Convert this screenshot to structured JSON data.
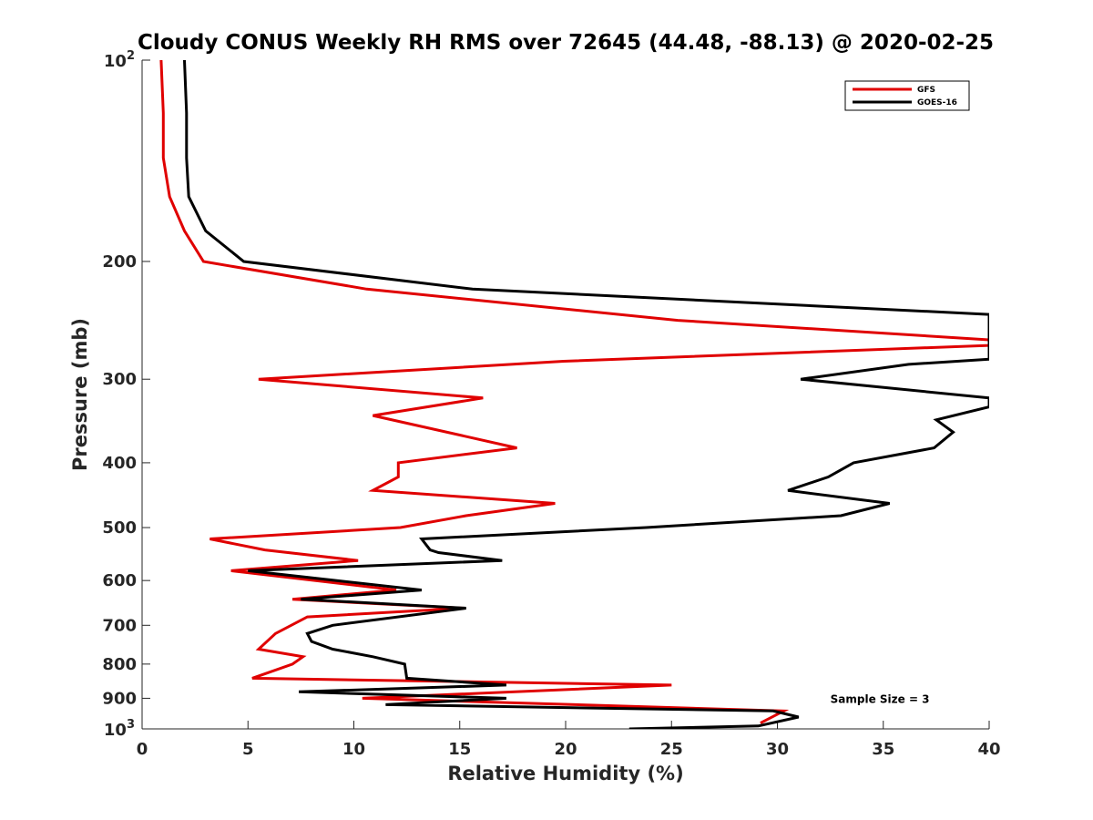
{
  "chart_data": {
    "type": "line",
    "title": "Cloudy CONUS Weekly RH RMS over 72645 (44.48, -88.13) @ 2020-02-25",
    "xlabel": "Relative Humidity (%)",
    "ylabel": "Pressure (mb)",
    "xlim": [
      0,
      40
    ],
    "ylim": [
      100,
      1000
    ],
    "yscale": "log",
    "y_reversed": true,
    "grid": false,
    "legend_position": "top-right",
    "x_ticks": [
      "0",
      "5",
      "10",
      "15",
      "20",
      "25",
      "30",
      "35",
      "40"
    ],
    "y_ticks": [
      {
        "value": 200,
        "label": "200"
      },
      {
        "value": 300,
        "label": "300"
      },
      {
        "value": 400,
        "label": "400"
      },
      {
        "value": 500,
        "label": "500"
      },
      {
        "value": 600,
        "label": "600"
      },
      {
        "value": 700,
        "label": "700"
      },
      {
        "value": 800,
        "label": "800"
      },
      {
        "value": 900,
        "label": "900"
      }
    ],
    "y_pow_ticks": [
      {
        "value": 100,
        "base": "10",
        "exp": "2"
      },
      {
        "value": 1000,
        "base": "10",
        "exp": "3"
      }
    ],
    "series": [
      {
        "name": "GFS",
        "color": "#e00000",
        "x": [
          0.9,
          1.0,
          1.0,
          1.3,
          2.0,
          2.9,
          10.6,
          25.3,
          40,
          40,
          19.9,
          5.5,
          16.1,
          10.9,
          17.7,
          12.1,
          12.1,
          10.9,
          19.5,
          15.3,
          12.2,
          3.2,
          5.8,
          10.2,
          4.2,
          12.0,
          7.1,
          15.2,
          7.8,
          6.3,
          5.5,
          7.6,
          7.1,
          5.2,
          25.0,
          10.4,
          30.3,
          29.2
        ],
        "y": [
          100,
          120,
          140,
          160,
          180,
          200,
          220,
          245,
          262,
          267,
          282,
          300,
          320,
          340,
          380,
          400,
          420,
          440,
          460,
          480,
          500,
          520,
          540,
          560,
          580,
          620,
          640,
          660,
          680,
          720,
          760,
          780,
          800,
          840,
          860,
          900,
          940,
          980
        ]
      },
      {
        "name": "GOES-16",
        "color": "#000000",
        "x": [
          2.0,
          2.1,
          2.1,
          2.2,
          3.0,
          4.8,
          15.6,
          40,
          40,
          36.2,
          31.1,
          40,
          40,
          37.5,
          38.3,
          37.4,
          33.6,
          32.4,
          30.5,
          35.3,
          33.0,
          23.8,
          13.2,
          13.6,
          14.0,
          17.0,
          5.0,
          13.2,
          7.5,
          15.3,
          9.0,
          7.8,
          8.0,
          9.0,
          10.9,
          12.4,
          12.5,
          17.2,
          7.4,
          17.2,
          11.5,
          29.8,
          31.0,
          29.1,
          23.0
        ],
        "y": [
          100,
          120,
          140,
          160,
          180,
          200,
          220,
          240,
          280,
          285,
          300,
          320,
          330,
          345,
          360,
          380,
          400,
          420,
          440,
          460,
          480,
          500,
          520,
          540,
          545,
          560,
          580,
          620,
          640,
          660,
          700,
          720,
          740,
          760,
          780,
          800,
          840,
          860,
          880,
          900,
          920,
          940,
          960,
          990,
          1000
        ]
      }
    ],
    "annotations": [
      {
        "text": "Sample Size = 3",
        "x": 32.5,
        "y": 900
      }
    ]
  }
}
